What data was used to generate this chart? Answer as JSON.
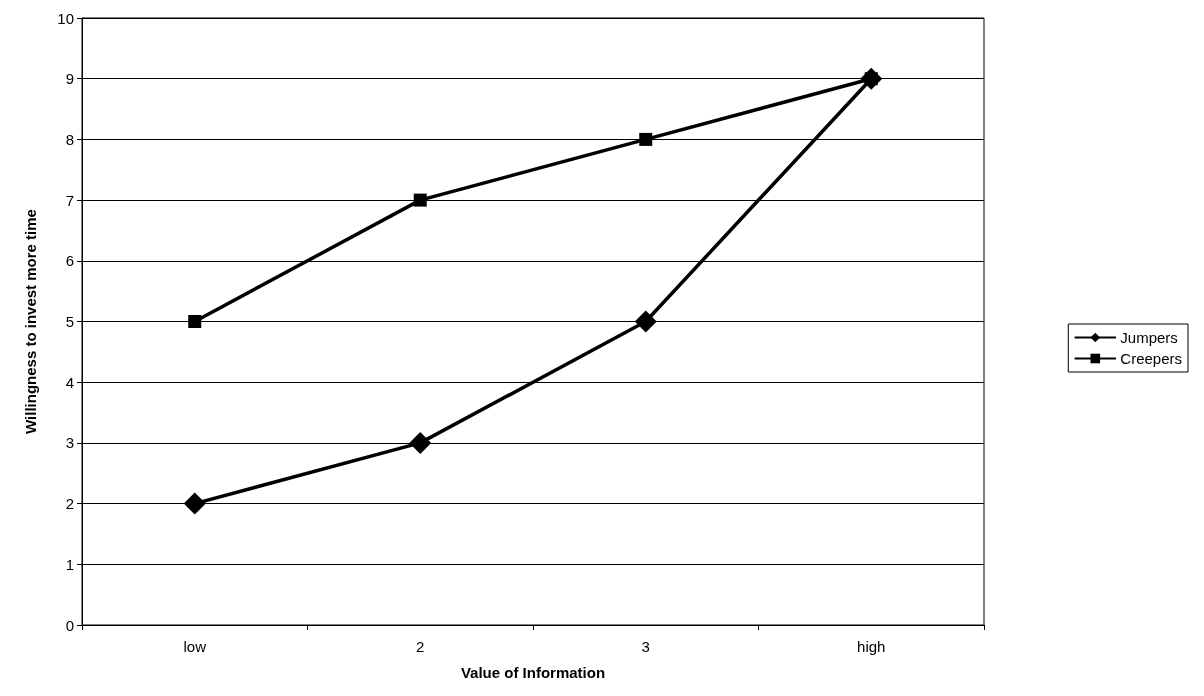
{
  "chart_data": {
    "type": "line",
    "xlabel": "Value of Information",
    "ylabel": "Willingness to invest more time",
    "categories": [
      "low",
      "2",
      "3",
      "high"
    ],
    "series": [
      {
        "name": "Jumpers",
        "color": "#000000",
        "marker": "diamond",
        "values": [
          2,
          3,
          5,
          9
        ]
      },
      {
        "name": "Creepers",
        "color": "#000000",
        "marker": "square",
        "values": [
          5,
          7,
          8,
          9
        ]
      }
    ],
    "ylim": [
      0,
      10
    ],
    "yticks": [
      0,
      1,
      2,
      3,
      4,
      5,
      6,
      7,
      8,
      9,
      10
    ],
    "grid": "y",
    "legend": "right",
    "line_style": "solid"
  }
}
